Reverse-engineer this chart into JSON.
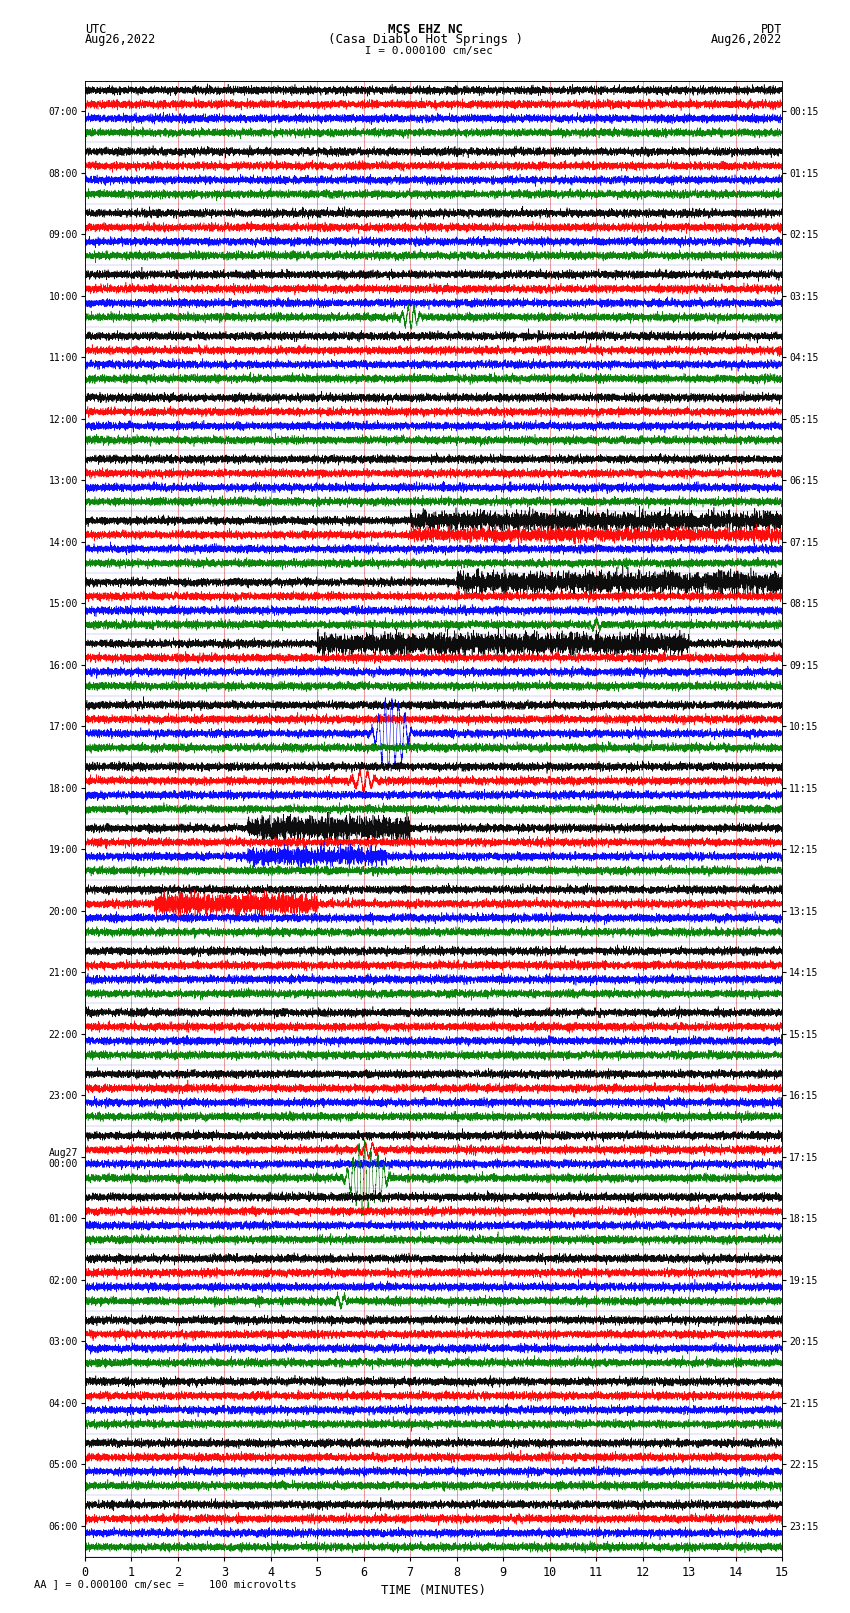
{
  "title_line1": "MCS EHZ NC",
  "title_line2": "(Casa Diablo Hot Springs )",
  "title_line3": " I = 0.000100 cm/sec",
  "label_utc": "UTC",
  "label_pdt": "PDT",
  "date_left": "Aug26,2022",
  "date_right": "Aug26,2022",
  "xlabel": "TIME (MINUTES)",
  "footer": "A ] = 0.000100 cm/sec =    100 microvolts",
  "utc_labels": [
    "07:00",
    "08:00",
    "09:00",
    "10:00",
    "11:00",
    "12:00",
    "13:00",
    "14:00",
    "15:00",
    "16:00",
    "17:00",
    "18:00",
    "19:00",
    "20:00",
    "21:00",
    "22:00",
    "23:00",
    "Aug27\n00:00",
    "01:00",
    "02:00",
    "03:00",
    "04:00",
    "05:00",
    "06:00"
  ],
  "pdt_labels": [
    "00:15",
    "01:15",
    "02:15",
    "03:15",
    "04:15",
    "05:15",
    "06:15",
    "07:15",
    "08:15",
    "09:15",
    "10:15",
    "11:15",
    "12:15",
    "13:15",
    "14:15",
    "15:15",
    "16:15",
    "17:15",
    "18:15",
    "19:15",
    "20:15",
    "21:15",
    "22:15",
    "23:15"
  ],
  "n_rows": 24,
  "n_traces_per_row": 4,
  "colors": [
    "black",
    "red",
    "blue",
    "green"
  ],
  "bg_color": "white",
  "grid_color_v": "#cc0000",
  "grid_color_h": "#0000cc",
  "xmin": 0,
  "xmax": 15,
  "figsize": [
    8.5,
    16.13
  ],
  "dpi": 100
}
